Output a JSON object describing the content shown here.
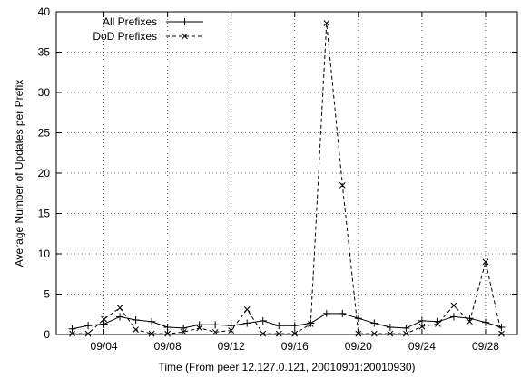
{
  "chart_data": {
    "type": "line",
    "xlabel": "Time (From peer 12.127.0.121, 20010901:20010930)",
    "ylabel": "Average Number of Updates per Prefix",
    "xlim": [
      1,
      30
    ],
    "ylim": [
      0,
      40
    ],
    "grid": true,
    "legend_position": "top-left",
    "x_ticks": [
      {
        "value": 4,
        "label": "09/04"
      },
      {
        "value": 8,
        "label": "09/08"
      },
      {
        "value": 12,
        "label": "09/12"
      },
      {
        "value": 16,
        "label": "09/16"
      },
      {
        "value": 20,
        "label": "09/20"
      },
      {
        "value": 24,
        "label": "09/24"
      },
      {
        "value": 28,
        "label": "09/28"
      }
    ],
    "y_ticks": [
      0,
      5,
      10,
      15,
      20,
      25,
      30,
      35,
      40
    ],
    "x": [
      2,
      3,
      4,
      5,
      6,
      7,
      8,
      9,
      10,
      11,
      12,
      13,
      14,
      15,
      16,
      17,
      18,
      19,
      20,
      21,
      22,
      23,
      24,
      25,
      26,
      27,
      28,
      29
    ],
    "series": [
      {
        "name": "All Prefixes",
        "marker": "+",
        "dash": "solid",
        "values": [
          0.7,
          1.1,
          1.3,
          2.2,
          1.8,
          1.6,
          0.9,
          0.8,
          1.2,
          1.2,
          1.1,
          1.4,
          1.7,
          1.1,
          1.1,
          1.4,
          2.6,
          2.6,
          2.0,
          1.4,
          0.9,
          0.8,
          1.7,
          1.6,
          2.2,
          2.0,
          1.5,
          0.9
        ]
      },
      {
        "name": "DoD Prefixes",
        "marker": "x",
        "dash": "dashed",
        "values": [
          0.1,
          0.1,
          1.9,
          3.3,
          0.6,
          0.1,
          0.1,
          0.3,
          0.8,
          0.3,
          0.5,
          3.1,
          0.1,
          0.1,
          0.1,
          1.3,
          38.6,
          18.5,
          0.1,
          0.1,
          0.1,
          0.1,
          1.0,
          1.3,
          3.6,
          1.6,
          9.0,
          0.1
        ]
      }
    ]
  }
}
